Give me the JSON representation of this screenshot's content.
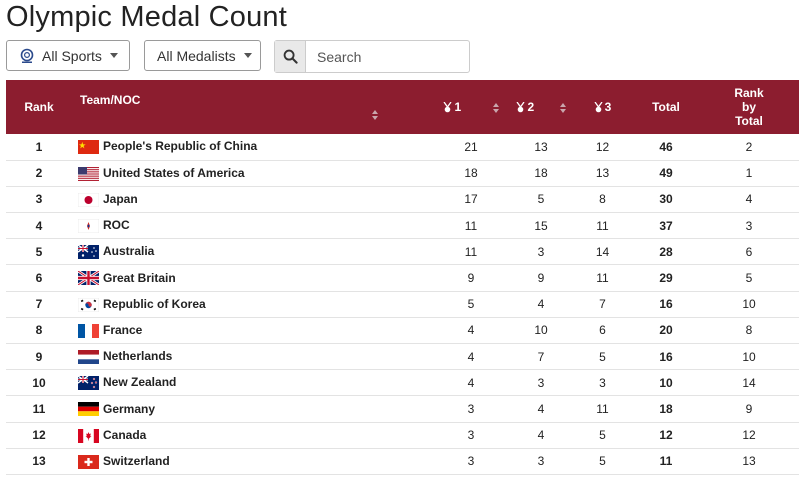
{
  "page": {
    "title": "Olympic Medal Count"
  },
  "filters": {
    "sports_label": "All Sports",
    "medalists_label": "All Medalists",
    "search_placeholder": "Search"
  },
  "table": {
    "headers": {
      "rank": "Rank",
      "team": "Team/NOC",
      "gold": "1",
      "silver": "2",
      "bronze": "3",
      "total": "Total",
      "rank_total_1": "Rank",
      "rank_total_2": "by",
      "rank_total_3": "Total"
    },
    "colors": {
      "header_bg": "#8c1d2f"
    },
    "rows": [
      {
        "rank": "1",
        "team": "People's Republic of China",
        "flag": "china-flag-icon",
        "gold": "21",
        "silver": "13",
        "bronze": "12",
        "total": "46",
        "rank_total": "2"
      },
      {
        "rank": "2",
        "team": "United States of America",
        "flag": "usa-flag-icon",
        "gold": "18",
        "silver": "18",
        "bronze": "13",
        "total": "49",
        "rank_total": "1"
      },
      {
        "rank": "3",
        "team": "Japan",
        "flag": "japan-flag-icon",
        "gold": "17",
        "silver": "5",
        "bronze": "8",
        "total": "30",
        "rank_total": "4"
      },
      {
        "rank": "4",
        "team": "ROC",
        "flag": "roc-flag-icon",
        "gold": "11",
        "silver": "15",
        "bronze": "11",
        "total": "37",
        "rank_total": "3"
      },
      {
        "rank": "5",
        "team": "Australia",
        "flag": "australia-flag-icon",
        "gold": "11",
        "silver": "3",
        "bronze": "14",
        "total": "28",
        "rank_total": "6"
      },
      {
        "rank": "6",
        "team": "Great Britain",
        "flag": "great-britain-flag-icon",
        "gold": "9",
        "silver": "9",
        "bronze": "11",
        "total": "29",
        "rank_total": "5"
      },
      {
        "rank": "7",
        "team": "Republic of Korea",
        "flag": "korea-flag-icon",
        "gold": "5",
        "silver": "4",
        "bronze": "7",
        "total": "16",
        "rank_total": "10"
      },
      {
        "rank": "8",
        "team": "France",
        "flag": "france-flag-icon",
        "gold": "4",
        "silver": "10",
        "bronze": "6",
        "total": "20",
        "rank_total": "8"
      },
      {
        "rank": "9",
        "team": "Netherlands",
        "flag": "netherlands-flag-icon",
        "gold": "4",
        "silver": "7",
        "bronze": "5",
        "total": "16",
        "rank_total": "10"
      },
      {
        "rank": "10",
        "team": "New Zealand",
        "flag": "new-zealand-flag-icon",
        "gold": "4",
        "silver": "3",
        "bronze": "3",
        "total": "10",
        "rank_total": "14"
      },
      {
        "rank": "11",
        "team": "Germany",
        "flag": "germany-flag-icon",
        "gold": "3",
        "silver": "4",
        "bronze": "11",
        "total": "18",
        "rank_total": "9"
      },
      {
        "rank": "12",
        "team": "Canada",
        "flag": "canada-flag-icon",
        "gold": "3",
        "silver": "4",
        "bronze": "5",
        "total": "12",
        "rank_total": "12"
      },
      {
        "rank": "13",
        "team": "Switzerland",
        "flag": "switzerland-flag-icon",
        "gold": "3",
        "silver": "3",
        "bronze": "5",
        "total": "11",
        "rank_total": "13"
      }
    ]
  }
}
